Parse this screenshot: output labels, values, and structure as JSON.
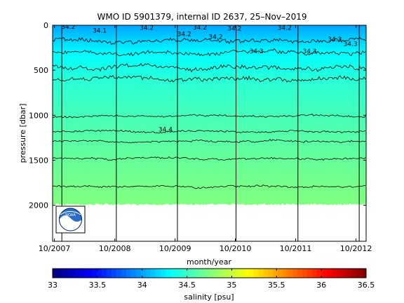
{
  "chart_data": {
    "type": "heatmap",
    "title": "WMO ID 5901379, internal ID 2637, 25–Nov–2019",
    "xlabel": "month/year",
    "ylabel": "pressure [dbar]",
    "xlim": [
      "2007-09-20",
      "2012-12-01"
    ],
    "ylim": [
      0,
      2400
    ],
    "y_inverted": true,
    "x_ticks": [
      "10/2007",
      "10/2008",
      "10/2009",
      "10/2010",
      "10/2011",
      "10/2012"
    ],
    "y_ticks": [
      0,
      500,
      1000,
      1500,
      2000
    ],
    "profile_max_pressure": 2000,
    "vertical_markers": [
      "2007-11-15",
      "2008-10-10",
      "2009-10-15",
      "2010-10-05",
      "2011-10-15",
      "2012-10-20"
    ],
    "colorbar": {
      "label": "salinity [psu]",
      "min": 33,
      "max": 36.5,
      "ticks": [
        33,
        33.5,
        34,
        34.5,
        35,
        35.5,
        36,
        36.5
      ]
    },
    "salinity_by_depth": {
      "pressure": [
        0,
        50,
        100,
        200,
        300,
        400,
        600,
        800,
        1000,
        1300,
        1600,
        1800,
        2000
      ],
      "salinity": [
        34.0,
        34.05,
        34.1,
        34.2,
        34.3,
        34.35,
        34.45,
        34.5,
        34.55,
        34.62,
        34.68,
        34.72,
        34.75
      ]
    },
    "contours": [
      {
        "label": "34.2",
        "pressure": 170
      },
      {
        "label": "34.3",
        "pressure": 310
      },
      {
        "label": "",
        "pressure": 470
      },
      {
        "label": "",
        "pressure": 600
      },
      {
        "label": "",
        "pressure": 1010
      },
      {
        "label": "34.4",
        "pressure": 1180
      },
      {
        "label": "",
        "pressure": 1290
      },
      {
        "label": "",
        "pressure": 1480
      },
      {
        "label": "",
        "pressure": 1790
      }
    ],
    "contour_labels": [
      "34.2",
      "34.2",
      "34.2",
      "34.2",
      "34.3",
      "34.3",
      "34.3",
      "34.3",
      "34.4",
      "34.2",
      "34.2",
      "34.2",
      "34.1"
    ]
  },
  "colors": {
    "background": "#ffffff",
    "no_data": "#ffffff",
    "contour": "#000000"
  },
  "logo_icon": "noaa-logo-icon"
}
